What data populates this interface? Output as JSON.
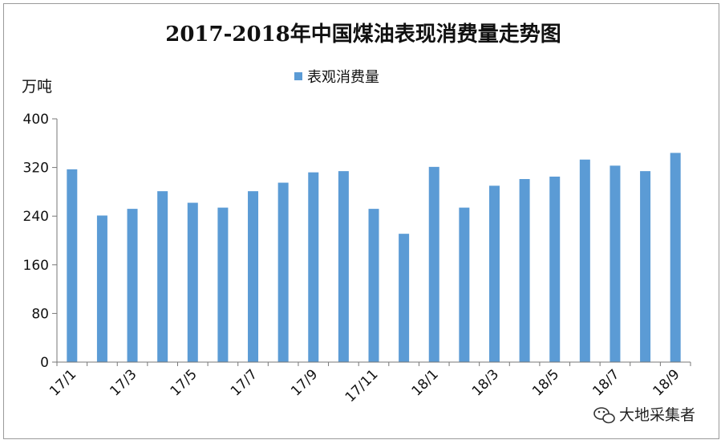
{
  "chart_data": {
    "type": "bar",
    "title": "2017-2018年中国煤油表现消费量走势图",
    "ylabel": "万吨",
    "ylim": [
      0,
      400
    ],
    "yticks": [
      0,
      80,
      160,
      240,
      320,
      400
    ],
    "legend_position": "top-center",
    "grid": false,
    "categories": [
      "17/1",
      "17/2",
      "17/3",
      "17/4",
      "17/5",
      "17/6",
      "17/7",
      "17/8",
      "17/9",
      "17/10",
      "17/11",
      "17/12",
      "18/1",
      "18/2",
      "18/3",
      "18/4",
      "18/5",
      "18/6",
      "18/7",
      "18/8",
      "18/9"
    ],
    "xtick_labels": [
      "17/1",
      "17/3",
      "17/5",
      "17/7",
      "17/9",
      "17/11",
      "18/1",
      "18/3",
      "18/5",
      "18/7",
      "18/9"
    ],
    "series": [
      {
        "name": "表观消费量",
        "color": "#5b9bd5",
        "values": [
          317,
          241,
          252,
          281,
          262,
          254,
          281,
          295,
          312,
          314,
          252,
          211,
          321,
          254,
          290,
          301,
          305,
          333,
          323,
          314,
          344
        ]
      }
    ]
  },
  "watermark": {
    "text": "大地采集者",
    "icon": "wechat-icon"
  }
}
